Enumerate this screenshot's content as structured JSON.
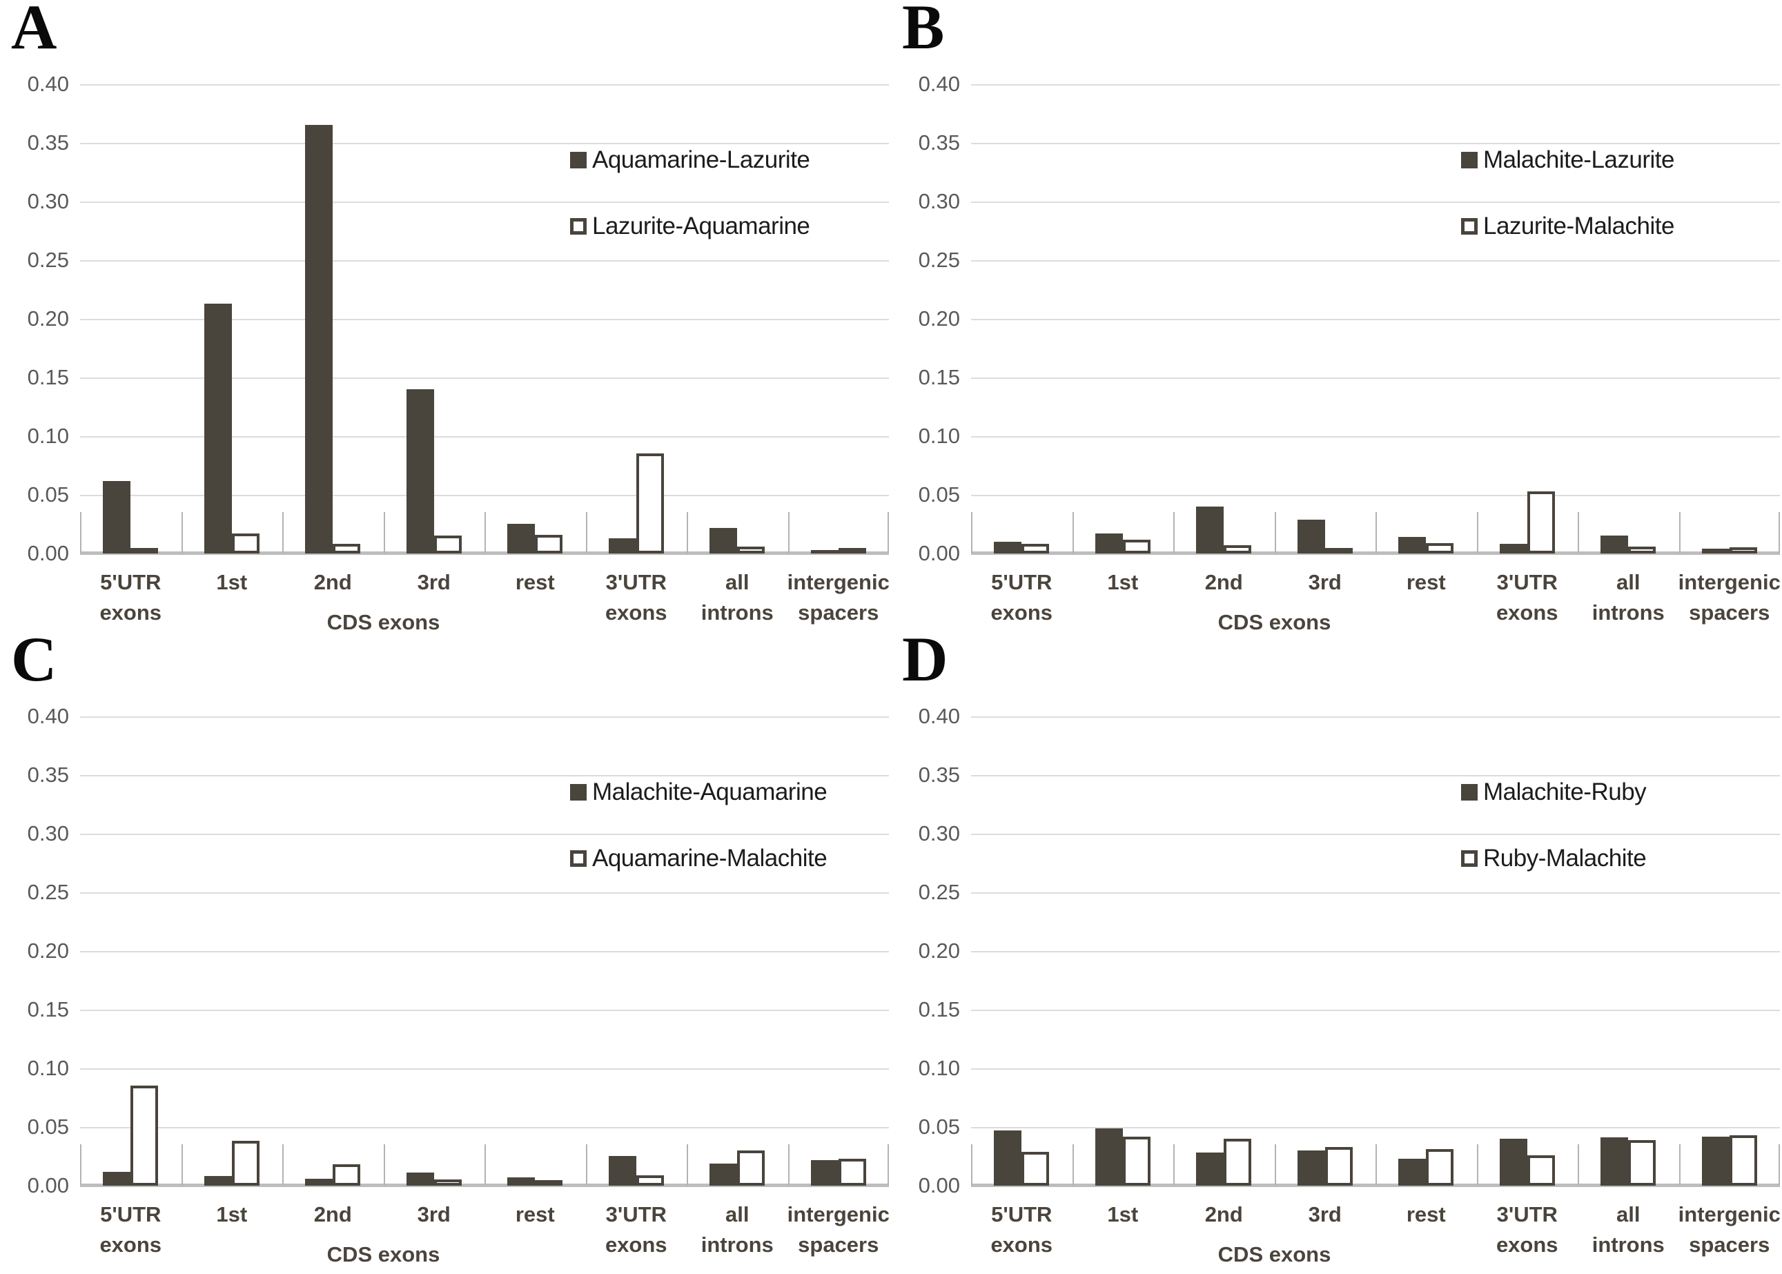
{
  "colors": {
    "bar_dark_fill": "#49443c",
    "bar_open_fill": "#ffffff",
    "bar_open_border": "#49443c",
    "gridline": "#dcdcdc",
    "axis_line": "#bdbdbd",
    "category_separator": "#b3b3b3",
    "ytick_text": "#595959",
    "xlabel_text": "#4a443c",
    "legend_text": "#1c1c1c",
    "panel_letter_text": "#0a0a0a",
    "background": "#ffffff"
  },
  "chart_data": [
    {
      "type": "bar",
      "panel_label": "A",
      "title": "",
      "xlabel": "",
      "ylabel": "",
      "ylim": [
        0,
        0.4
      ],
      "ytick_step": 0.05,
      "ytick_labels": [
        "0.40",
        "0.35",
        "0.30",
        "0.25",
        "0.20",
        "0.15",
        "0.10",
        "0.05",
        "0.00"
      ],
      "grid": "horizontal",
      "legend_position": "inside-right",
      "categories": [
        [
          "5'UTR",
          "exons"
        ],
        [
          "1st"
        ],
        [
          "2nd"
        ],
        [
          "3rd"
        ],
        [
          "rest"
        ],
        [
          "3'UTR",
          "exons"
        ],
        [
          "all",
          "introns"
        ],
        [
          "intergenic",
          "spacers"
        ]
      ],
      "category_group_label": "CDS exons",
      "category_group_span": [
        1,
        4
      ],
      "series": [
        {
          "name": "Aquamarine-Lazurite",
          "style": "filled",
          "values": [
            0.062,
            0.213,
            0.365,
            0.14,
            0.025,
            0.013,
            0.022,
            0.003
          ]
        },
        {
          "name": "Lazurite-Aquamarine",
          "style": "open",
          "values": [
            0.002,
            0.017,
            0.008,
            0.015,
            0.016,
            0.085,
            0.006,
            0.004
          ]
        }
      ]
    },
    {
      "type": "bar",
      "panel_label": "B",
      "title": "",
      "xlabel": "",
      "ylabel": "",
      "ylim": [
        0,
        0.4
      ],
      "ytick_step": 0.05,
      "ytick_labels": [
        "0.40",
        "0.35",
        "0.30",
        "0.25",
        "0.20",
        "0.15",
        "0.10",
        "0.05",
        "0.00"
      ],
      "grid": "horizontal",
      "legend_position": "inside-right",
      "categories": [
        [
          "5'UTR",
          "exons"
        ],
        [
          "1st"
        ],
        [
          "2nd"
        ],
        [
          "3rd"
        ],
        [
          "rest"
        ],
        [
          "3'UTR",
          "exons"
        ],
        [
          "all",
          "introns"
        ],
        [
          "intergenic",
          "spacers"
        ]
      ],
      "category_group_label": "CDS exons",
      "category_group_span": [
        1,
        4
      ],
      "series": [
        {
          "name": "Malachite-Lazurite",
          "style": "filled",
          "values": [
            0.01,
            0.017,
            0.04,
            0.029,
            0.014,
            0.008,
            0.015,
            0.004
          ]
        },
        {
          "name": "Lazurite-Malachite",
          "style": "open",
          "values": [
            0.008,
            0.012,
            0.007,
            0.003,
            0.009,
            0.053,
            0.006,
            0.005
          ]
        }
      ]
    },
    {
      "type": "bar",
      "panel_label": "C",
      "title": "",
      "xlabel": "",
      "ylabel": "",
      "ylim": [
        0,
        0.4
      ],
      "ytick_step": 0.05,
      "ytick_labels": [
        "0.40",
        "0.35",
        "0.30",
        "0.25",
        "0.20",
        "0.15",
        "0.10",
        "0.05",
        "0.00"
      ],
      "grid": "horizontal",
      "legend_position": "inside-right",
      "categories": [
        [
          "5'UTR",
          "exons"
        ],
        [
          "1st"
        ],
        [
          "2nd"
        ],
        [
          "3rd"
        ],
        [
          "rest"
        ],
        [
          "3'UTR",
          "exons"
        ],
        [
          "all",
          "introns"
        ],
        [
          "intergenic",
          "spacers"
        ]
      ],
      "category_group_label": "CDS exons",
      "category_group_span": [
        1,
        4
      ],
      "series": [
        {
          "name": "Malachite-Aquamarine",
          "style": "filled",
          "values": [
            0.012,
            0.008,
            0.006,
            0.011,
            0.007,
            0.025,
            0.019,
            0.022
          ]
        },
        {
          "name": "Aquamarine-Malachite",
          "style": "open",
          "values": [
            0.085,
            0.038,
            0.018,
            0.005,
            0.004,
            0.009,
            0.03,
            0.023
          ]
        }
      ]
    },
    {
      "type": "bar",
      "panel_label": "D",
      "title": "",
      "xlabel": "",
      "ylabel": "",
      "ylim": [
        0,
        0.4
      ],
      "ytick_step": 0.05,
      "ytick_labels": [
        "0.40",
        "0.35",
        "0.30",
        "0.25",
        "0.20",
        "0.15",
        "0.10",
        "0.05",
        "0.00"
      ],
      "grid": "horizontal",
      "legend_position": "inside-right",
      "categories": [
        [
          "5'UTR",
          "exons"
        ],
        [
          "1st"
        ],
        [
          "2nd"
        ],
        [
          "3rd"
        ],
        [
          "rest"
        ],
        [
          "3'UTR",
          "exons"
        ],
        [
          "all",
          "introns"
        ],
        [
          "intergenic",
          "spacers"
        ]
      ],
      "category_group_label": "CDS exons",
      "category_group_span": [
        1,
        4
      ],
      "series": [
        {
          "name": "Malachite-Ruby",
          "style": "filled",
          "values": [
            0.047,
            0.049,
            0.028,
            0.03,
            0.023,
            0.04,
            0.041,
            0.042
          ]
        },
        {
          "name": "Ruby-Malachite",
          "style": "open",
          "values": [
            0.029,
            0.042,
            0.04,
            0.033,
            0.031,
            0.026,
            0.039,
            0.043
          ]
        }
      ]
    }
  ]
}
